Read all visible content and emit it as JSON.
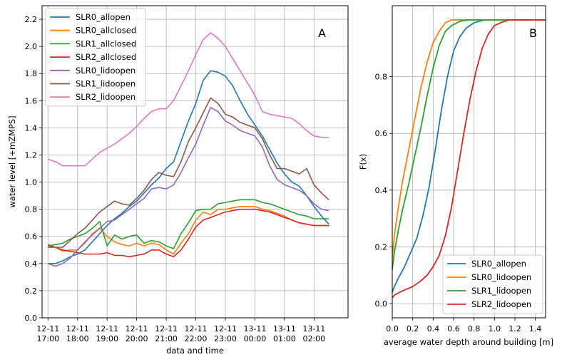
{
  "chart_data": [
    {
      "type": "line",
      "panel_label": "A",
      "xlabel": "data and time",
      "ylabel": "water level [+mZMPS]",
      "ylim": [
        0.0,
        2.3
      ],
      "yticks": [
        0.0,
        0.2,
        0.4,
        0.6,
        0.8,
        1.0,
        1.2,
        1.4,
        1.6,
        1.8,
        2.0,
        2.2
      ],
      "xlim": [
        -0.2,
        10.15
      ],
      "xticks": [
        {
          "value": 0,
          "date": "12-11",
          "time": "17:00"
        },
        {
          "value": 1,
          "date": "12-11",
          "time": "18:00"
        },
        {
          "value": 2,
          "date": "12-11",
          "time": "19:00"
        },
        {
          "value": 3,
          "date": "12-11",
          "time": "20:00"
        },
        {
          "value": 4,
          "date": "12-11",
          "time": "21:00"
        },
        {
          "value": 5,
          "date": "12-11",
          "time": "22:00"
        },
        {
          "value": 6,
          "date": "12-11",
          "time": "23:00"
        },
        {
          "value": 7,
          "date": "13-11",
          "time": "00:00"
        },
        {
          "value": 8,
          "date": "13-11",
          "time": "01:00"
        },
        {
          "value": 9,
          "date": "13-11",
          "time": "02:00"
        }
      ],
      "grid": true,
      "legend_position": "upper-left",
      "x": [
        0.0,
        0.25,
        0.5,
        0.75,
        1.0,
        1.25,
        1.5,
        1.75,
        2.0,
        2.25,
        2.5,
        2.75,
        3.0,
        3.25,
        3.5,
        3.75,
        4.0,
        4.25,
        4.5,
        4.75,
        5.0,
        5.25,
        5.5,
        5.75,
        6.0,
        6.25,
        6.5,
        6.75,
        7.0,
        7.25,
        7.5,
        7.75,
        8.0,
        8.25,
        8.5,
        8.75,
        9.0,
        9.25,
        9.5
      ],
      "series": [
        {
          "name": "SLR0_allopen",
          "color": "#1f77b4",
          "values": [
            0.4,
            0.4,
            0.42,
            0.45,
            0.47,
            0.5,
            0.56,
            0.62,
            0.68,
            0.73,
            0.77,
            0.82,
            0.86,
            0.92,
            0.98,
            1.03,
            1.1,
            1.15,
            1.3,
            1.45,
            1.58,
            1.75,
            1.82,
            1.81,
            1.78,
            1.71,
            1.6,
            1.5,
            1.42,
            1.34,
            1.24,
            1.14,
            1.06,
            1.0,
            0.97,
            0.9,
            0.82,
            0.75,
            0.69
          ]
        },
        {
          "name": "SLR0_allclosed",
          "color": "#ff7f0e",
          "values": [
            0.53,
            0.52,
            0.49,
            0.5,
            0.5,
            0.55,
            0.62,
            0.66,
            0.6,
            0.56,
            0.54,
            0.53,
            0.55,
            0.53,
            0.55,
            0.54,
            0.5,
            0.47,
            0.55,
            0.62,
            0.72,
            0.78,
            0.76,
            0.8,
            0.8,
            0.81,
            0.82,
            0.82,
            0.82,
            0.8,
            0.79,
            0.77,
            0.75,
            0.72,
            0.7,
            0.69,
            0.68,
            0.68,
            0.68
          ]
        },
        {
          "name": "SLR1_allclosed",
          "color": "#2ca02c",
          "values": [
            0.53,
            0.54,
            0.55,
            0.58,
            0.6,
            0.62,
            0.66,
            0.71,
            0.53,
            0.61,
            0.58,
            0.6,
            0.61,
            0.55,
            0.57,
            0.56,
            0.53,
            0.51,
            0.62,
            0.7,
            0.79,
            0.8,
            0.8,
            0.84,
            0.85,
            0.86,
            0.87,
            0.87,
            0.87,
            0.85,
            0.84,
            0.82,
            0.8,
            0.78,
            0.76,
            0.75,
            0.73,
            0.73,
            0.73
          ]
        },
        {
          "name": "SLR2_allclosed",
          "color": "#d62728",
          "values": [
            0.52,
            0.52,
            0.5,
            0.49,
            0.48,
            0.47,
            0.47,
            0.47,
            0.48,
            0.46,
            0.46,
            0.45,
            0.46,
            0.47,
            0.5,
            0.5,
            0.47,
            0.45,
            0.5,
            0.58,
            0.67,
            0.72,
            0.74,
            0.76,
            0.78,
            0.79,
            0.8,
            0.8,
            0.8,
            0.79,
            0.78,
            0.76,
            0.74,
            0.72,
            0.7,
            0.69,
            0.68,
            0.68,
            0.68
          ]
        },
        {
          "name": "SLR0_lidoopen",
          "color": "#9467bd",
          "values": [
            0.4,
            0.38,
            0.4,
            0.44,
            0.5,
            0.56,
            0.61,
            0.66,
            0.71,
            0.72,
            0.76,
            0.8,
            0.84,
            0.88,
            0.95,
            0.96,
            0.95,
            0.98,
            1.07,
            1.18,
            1.28,
            1.42,
            1.55,
            1.52,
            1.45,
            1.42,
            1.38,
            1.36,
            1.34,
            1.26,
            1.12,
            1.02,
            0.98,
            0.96,
            0.94,
            0.9,
            0.84,
            0.8,
            0.79
          ]
        },
        {
          "name": "SLR1_lidoopen",
          "color": "#8c564b",
          "values": [
            0.54,
            0.52,
            0.52,
            0.57,
            0.62,
            0.66,
            0.72,
            0.78,
            0.82,
            0.86,
            0.84,
            0.83,
            0.88,
            0.94,
            1.02,
            1.07,
            1.05,
            1.04,
            1.15,
            1.3,
            1.4,
            1.51,
            1.62,
            1.58,
            1.5,
            1.48,
            1.44,
            1.42,
            1.4,
            1.32,
            1.2,
            1.1,
            1.1,
            1.08,
            1.06,
            1.1,
            0.98,
            0.92,
            0.87
          ]
        },
        {
          "name": "SLR2_lidoopen",
          "color": "#e377c2",
          "values": [
            1.17,
            1.15,
            1.12,
            1.12,
            1.12,
            1.12,
            1.17,
            1.22,
            1.25,
            1.28,
            1.32,
            1.36,
            1.41,
            1.47,
            1.52,
            1.54,
            1.54,
            1.6,
            1.71,
            1.82,
            1.94,
            2.05,
            2.1,
            2.06,
            2.0,
            1.91,
            1.82,
            1.73,
            1.64,
            1.52,
            1.5,
            1.49,
            1.48,
            1.47,
            1.43,
            1.38,
            1.34,
            1.33,
            1.33
          ]
        }
      ]
    },
    {
      "type": "line",
      "panel_label": "B",
      "xlabel": "average water depth around building [m]",
      "ylabel": "F(x)",
      "xlim": [
        0.0,
        1.5
      ],
      "ylim": [
        -0.05,
        1.05
      ],
      "xticks": [
        0.0,
        0.2,
        0.4,
        0.6,
        0.8,
        1.0,
        1.2,
        1.4
      ],
      "yticks": [
        0.0,
        0.2,
        0.4,
        0.6,
        0.8
      ],
      "grid": true,
      "legend_position": "lower-right",
      "series": [
        {
          "name": "SLR0_allopen",
          "color": "#1f77b4",
          "points": [
            [
              0.0,
              0.04
            ],
            [
              0.02,
              0.06
            ],
            [
              0.06,
              0.09
            ],
            [
              0.12,
              0.13
            ],
            [
              0.18,
              0.18
            ],
            [
              0.24,
              0.23
            ],
            [
              0.3,
              0.31
            ],
            [
              0.36,
              0.41
            ],
            [
              0.42,
              0.54
            ],
            [
              0.48,
              0.68
            ],
            [
              0.54,
              0.8
            ],
            [
              0.6,
              0.89
            ],
            [
              0.66,
              0.94
            ],
            [
              0.72,
              0.97
            ],
            [
              0.8,
              0.99
            ],
            [
              0.9,
              1.0
            ],
            [
              1.0,
              1.0
            ],
            [
              1.1,
              1.0
            ],
            [
              1.2,
              1.0
            ],
            [
              1.3,
              1.0
            ],
            [
              1.4,
              1.0
            ],
            [
              1.5,
              1.0
            ]
          ]
        },
        {
          "name": "SLR0_lidoopen",
          "color": "#ff7f0e",
          "points": [
            [
              0.0,
              0.16
            ],
            [
              0.02,
              0.24
            ],
            [
              0.06,
              0.34
            ],
            [
              0.1,
              0.43
            ],
            [
              0.16,
              0.54
            ],
            [
              0.22,
              0.65
            ],
            [
              0.28,
              0.76
            ],
            [
              0.34,
              0.85
            ],
            [
              0.4,
              0.92
            ],
            [
              0.46,
              0.96
            ],
            [
              0.52,
              0.99
            ],
            [
              0.58,
              1.0
            ],
            [
              0.7,
              1.0
            ],
            [
              0.9,
              1.0
            ],
            [
              1.1,
              1.0
            ],
            [
              1.3,
              1.0
            ],
            [
              1.5,
              1.0
            ]
          ]
        },
        {
          "name": "SLR1_lidoopen",
          "color": "#2ca02c",
          "points": [
            [
              0.0,
              0.12
            ],
            [
              0.02,
              0.18
            ],
            [
              0.06,
              0.26
            ],
            [
              0.1,
              0.33
            ],
            [
              0.16,
              0.42
            ],
            [
              0.22,
              0.52
            ],
            [
              0.28,
              0.62
            ],
            [
              0.34,
              0.73
            ],
            [
              0.4,
              0.83
            ],
            [
              0.46,
              0.91
            ],
            [
              0.52,
              0.96
            ],
            [
              0.58,
              0.98
            ],
            [
              0.66,
              0.995
            ],
            [
              0.75,
              1.0
            ],
            [
              0.9,
              1.0
            ],
            [
              1.1,
              1.0
            ],
            [
              1.3,
              1.0
            ],
            [
              1.5,
              1.0
            ]
          ]
        },
        {
          "name": "SLR2_lidoopen",
          "color": "#d62728",
          "points": [
            [
              0.0,
              0.02
            ],
            [
              0.02,
              0.03
            ],
            [
              0.1,
              0.045
            ],
            [
              0.2,
              0.06
            ],
            [
              0.28,
              0.08
            ],
            [
              0.34,
              0.1
            ],
            [
              0.4,
              0.13
            ],
            [
              0.46,
              0.17
            ],
            [
              0.52,
              0.24
            ],
            [
              0.58,
              0.34
            ],
            [
              0.64,
              0.47
            ],
            [
              0.7,
              0.6
            ],
            [
              0.76,
              0.72
            ],
            [
              0.82,
              0.82
            ],
            [
              0.88,
              0.9
            ],
            [
              0.94,
              0.95
            ],
            [
              1.0,
              0.98
            ],
            [
              1.06,
              0.99
            ],
            [
              1.14,
              1.0
            ],
            [
              1.3,
              1.0
            ],
            [
              1.5,
              1.0
            ]
          ]
        }
      ]
    }
  ]
}
